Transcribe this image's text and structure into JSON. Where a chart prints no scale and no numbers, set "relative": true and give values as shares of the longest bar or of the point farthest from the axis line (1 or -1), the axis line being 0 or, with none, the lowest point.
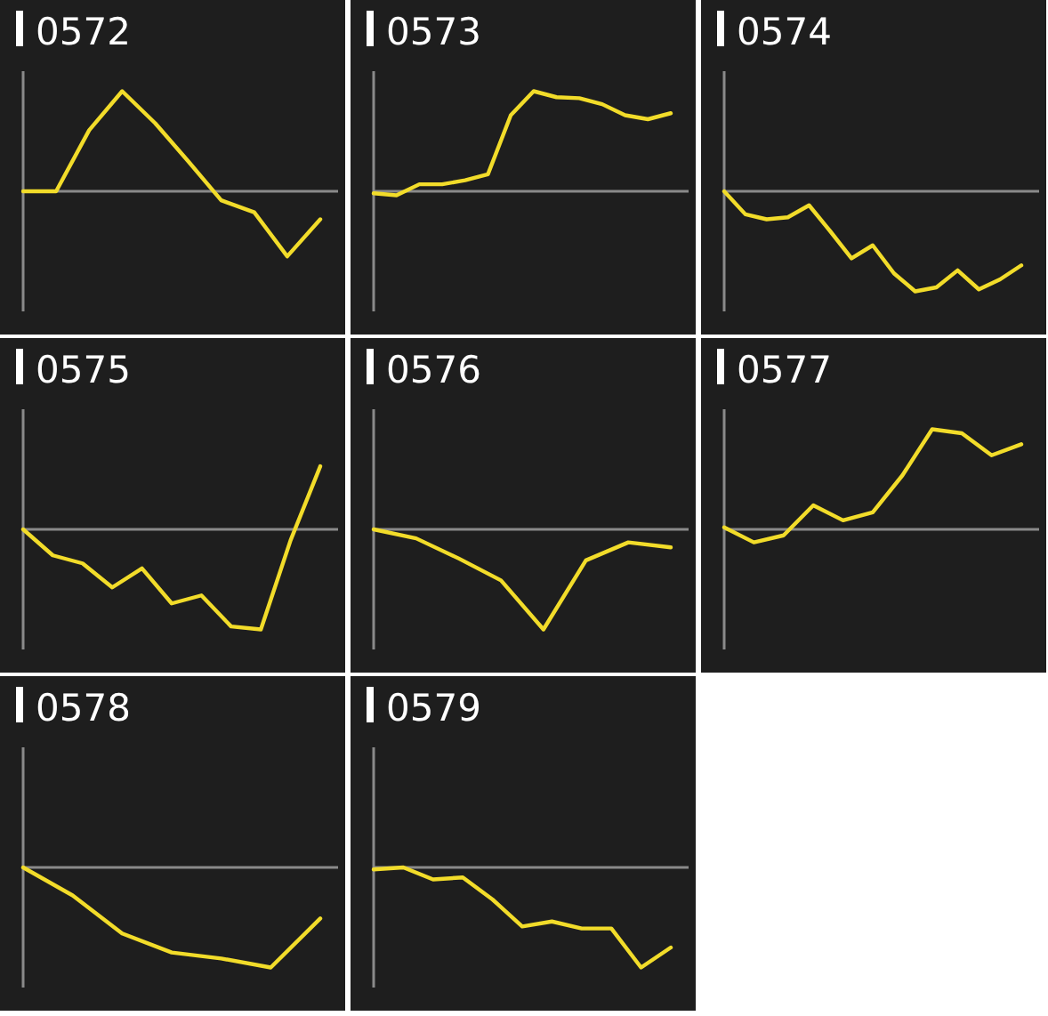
{
  "chart_data": [
    {
      "type": "line",
      "title": "0572",
      "relative": true,
      "categories": [
        null,
        null,
        null,
        null,
        null,
        null,
        null,
        null,
        null,
        null
      ],
      "series": [
        {
          "color": "#f2dc2a",
          "values": [
            0,
            0,
            0.61,
            1,
            0.68,
            0.3,
            -0.09,
            -0.21,
            -0.65,
            -0.28
          ]
        }
      ]
    },
    {
      "type": "line",
      "title": "0573",
      "relative": true,
      "categories": [
        null,
        null,
        null,
        null,
        null,
        null,
        null,
        null,
        null,
        null,
        null,
        null,
        null,
        null
      ],
      "series": [
        {
          "color": "#f2dc2a",
          "values": [
            -0.02,
            -0.04,
            0.07,
            0.07,
            0.11,
            0.17,
            0.76,
            1,
            0.94,
            0.93,
            0.87,
            0.76,
            0.72,
            0.78
          ]
        }
      ]
    },
    {
      "type": "line",
      "title": "0574",
      "relative": true,
      "categories": [
        null,
        null,
        null,
        null,
        null,
        null,
        null,
        null,
        null,
        null,
        null,
        null,
        null,
        null,
        null
      ],
      "series": [
        {
          "color": "#f2dc2a",
          "values": [
            0,
            -0.23,
            -0.28,
            -0.26,
            -0.14,
            -0.4,
            -0.67,
            -0.54,
            -0.82,
            -1,
            -0.96,
            -0.79,
            -0.98,
            -0.88,
            -0.74
          ]
        }
      ]
    },
    {
      "type": "line",
      "title": "0575",
      "relative": true,
      "categories": [
        null,
        null,
        null,
        null,
        null,
        null,
        null,
        null,
        null,
        null,
        null
      ],
      "series": [
        {
          "color": "#f2dc2a",
          "values": [
            0,
            -0.26,
            -0.34,
            -0.58,
            -0.39,
            -0.74,
            -0.66,
            -0.97,
            -1,
            -0.11,
            0.63
          ]
        }
      ]
    },
    {
      "type": "line",
      "title": "0576",
      "relative": true,
      "categories": [
        null,
        null,
        null,
        null,
        null,
        null,
        null,
        null
      ],
      "series": [
        {
          "color": "#f2dc2a",
          "values": [
            0,
            -0.09,
            -0.29,
            -0.51,
            -1,
            -0.31,
            -0.13,
            -0.18
          ]
        }
      ]
    },
    {
      "type": "line",
      "title": "0577",
      "relative": true,
      "categories": [
        null,
        null,
        null,
        null,
        null,
        null,
        null,
        null,
        null,
        null,
        null
      ],
      "series": [
        {
          "color": "#f2dc2a",
          "values": [
            0.02,
            -0.13,
            -0.06,
            0.24,
            0.09,
            0.17,
            0.54,
            1,
            0.96,
            0.74,
            0.85
          ]
        }
      ]
    },
    {
      "type": "line",
      "title": "0578",
      "relative": true,
      "categories": [
        null,
        null,
        null,
        null,
        null,
        null,
        null
      ],
      "series": [
        {
          "color": "#f2dc2a",
          "values": [
            0,
            -0.28,
            -0.66,
            -0.85,
            -0.91,
            -1,
            -0.51
          ]
        }
      ]
    },
    {
      "type": "line",
      "title": "0579",
      "relative": true,
      "categories": [
        null,
        null,
        null,
        null,
        null,
        null,
        null,
        null,
        null,
        null,
        null
      ],
      "series": [
        {
          "color": "#f2dc2a",
          "values": [
            -0.02,
            0,
            -0.12,
            -0.1,
            -0.32,
            -0.59,
            -0.54,
            -0.61,
            -0.61,
            -1,
            -0.8
          ]
        }
      ]
    }
  ]
}
